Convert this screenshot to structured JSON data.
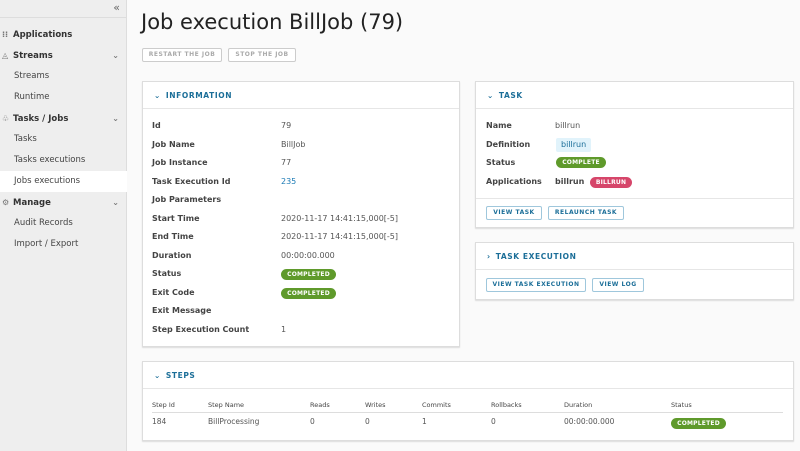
{
  "sidebar": {
    "collapse_icon": "double-chevron-left",
    "items": [
      {
        "label": "Applications",
        "icon": "grid-icon"
      },
      {
        "label": "Streams",
        "icon": "streams-icon"
      },
      {
        "label": "Streams"
      },
      {
        "label": "Runtime"
      },
      {
        "label": "Tasks / Jobs",
        "icon": "tasks-icon"
      },
      {
        "label": "Tasks"
      },
      {
        "label": "Tasks executions"
      },
      {
        "label": "Jobs executions",
        "selected": true
      },
      {
        "label": "Manage",
        "icon": "gear-icon"
      },
      {
        "label": "Audit Records"
      },
      {
        "label": "Import / Export"
      }
    ]
  },
  "page": {
    "title": "Job execution BillJob (79)",
    "restart": "RESTART THE JOB",
    "stop": "STOP THE JOB"
  },
  "info": {
    "title": "INFORMATION",
    "rows": [
      {
        "label": "Id",
        "value": "79"
      },
      {
        "label": "Job Name",
        "value": "BillJob"
      },
      {
        "label": "Job Instance",
        "value": "77"
      },
      {
        "label": "Task Execution Id",
        "value": "235"
      },
      {
        "label": "Job Parameters",
        "value": ""
      },
      {
        "label": "Start Time",
        "value": "2020-11-17 14:41:15,000[-5]"
      },
      {
        "label": "End Time",
        "value": "2020-11-17 14:41:15,000[-5]"
      },
      {
        "label": "Duration",
        "value": "00:00:00.000"
      },
      {
        "label": "Status",
        "value": "COMPLETED"
      },
      {
        "label": "Exit Code",
        "value": "COMPLETED"
      },
      {
        "label": "Exit Message",
        "value": ""
      },
      {
        "label": "Step Execution Count",
        "value": "1"
      }
    ]
  },
  "task": {
    "title": "TASK",
    "name_label": "Name",
    "name": "billrun",
    "definition_label": "Definition",
    "definition": "billrun",
    "status_label": "Status",
    "status": "COMPLETE",
    "apps_label": "Applications",
    "app": "billrun",
    "app_badge": "BILLRUN",
    "view": "VIEW TASK",
    "relaunch": "RELAUNCH TASK"
  },
  "task_execution": {
    "title": "TASK EXECUTION",
    "view": "VIEW TASK EXECUTION",
    "log": "VIEW LOG"
  },
  "steps": {
    "title": "STEPS",
    "columns": [
      "Step Id",
      "Step Name",
      "Reads",
      "Writes",
      "Commits",
      "Rollbacks",
      "Duration",
      "Status"
    ],
    "rows": [
      [
        "184",
        "BillProcessing",
        "0",
        "0",
        "1",
        "0",
        "00:00:00.000",
        "COMPLETED"
      ]
    ]
  },
  "colors": {
    "accent": "#1b6e98",
    "success": "#5f9a2b",
    "danger": "#d6466a"
  }
}
